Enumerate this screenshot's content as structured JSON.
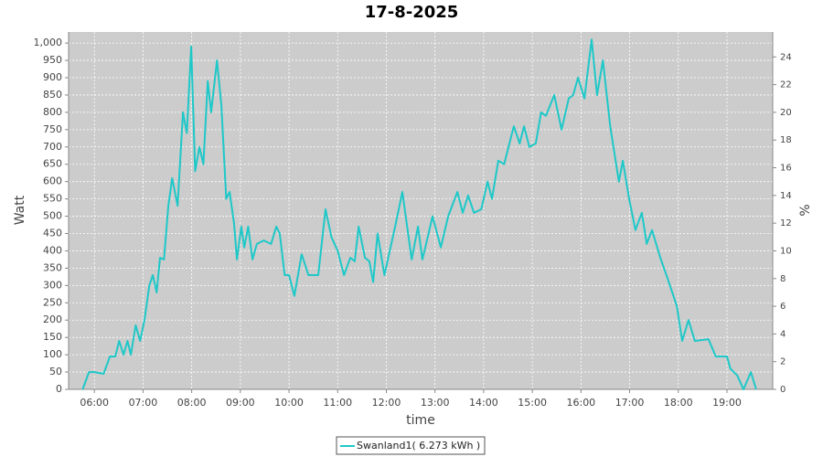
{
  "chart_data": {
    "type": "line",
    "title": "17-8-2025",
    "xlabel": "time",
    "ylabel": "Watt",
    "y2label": "%",
    "x": [
      5.76,
      5.89,
      6.0,
      6.19,
      6.32,
      6.43,
      6.51,
      6.6,
      6.68,
      6.75,
      6.85,
      6.94,
      7.03,
      7.13,
      7.2,
      7.28,
      7.35,
      7.43,
      7.52,
      7.6,
      7.71,
      7.82,
      7.9,
      7.99,
      8.07,
      8.16,
      8.24,
      8.33,
      8.4,
      8.52,
      8.61,
      8.71,
      8.78,
      8.87,
      8.93,
      9.02,
      9.08,
      9.16,
      9.25,
      9.34,
      9.48,
      9.63,
      9.74,
      9.81,
      9.91,
      10.0,
      10.11,
      10.26,
      10.4,
      10.6,
      10.75,
      10.87,
      11.0,
      11.13,
      11.26,
      11.35,
      11.43,
      11.56,
      11.65,
      11.73,
      11.82,
      11.96,
      12.18,
      12.33,
      12.52,
      12.65,
      12.74,
      12.8,
      12.95,
      13.12,
      13.27,
      13.46,
      13.57,
      13.68,
      13.8,
      13.95,
      14.08,
      14.17,
      14.3,
      14.42,
      14.51,
      14.62,
      14.74,
      14.83,
      14.94,
      15.07,
      15.18,
      15.28,
      15.45,
      15.6,
      15.75,
      15.84,
      15.94,
      16.07,
      16.22,
      16.33,
      16.45,
      16.6,
      16.78,
      16.86,
      16.99,
      17.12,
      17.25,
      17.35,
      17.46,
      17.63,
      17.78,
      17.97,
      18.08,
      18.21,
      18.34,
      18.62,
      18.77,
      19.0,
      19.07,
      19.21,
      19.34,
      19.49,
      19.6
    ],
    "series": [
      {
        "name": "Swanland1( 6.273 kWh )",
        "color": "#1ec8c8",
        "values": [
          0,
          50,
          50,
          45,
          95,
          95,
          140,
          100,
          140,
          100,
          185,
          140,
          200,
          300,
          330,
          280,
          380,
          375,
          530,
          610,
          530,
          800,
          740,
          990,
          630,
          700,
          650,
          890,
          800,
          950,
          820,
          550,
          570,
          480,
          375,
          470,
          410,
          470,
          375,
          420,
          430,
          420,
          470,
          450,
          330,
          330,
          270,
          390,
          330,
          330,
          520,
          440,
          400,
          330,
          380,
          370,
          470,
          380,
          370,
          310,
          450,
          330,
          470,
          570,
          375,
          470,
          375,
          410,
          500,
          410,
          500,
          570,
          510,
          560,
          510,
          520,
          600,
          550,
          660,
          650,
          700,
          760,
          710,
          760,
          700,
          710,
          800,
          790,
          850,
          750,
          840,
          850,
          900,
          840,
          1010,
          850,
          950,
          760,
          600,
          660,
          550,
          460,
          510,
          420,
          460,
          380,
          320,
          240,
          140,
          200,
          140,
          145,
          95,
          95,
          60,
          40,
          0,
          50,
          0
        ]
      }
    ],
    "xlim": [
      5.47,
      19.94
    ],
    "xticks": [
      {
        "value": 6,
        "label": "06:00"
      },
      {
        "value": 7,
        "label": "07:00"
      },
      {
        "value": 8,
        "label": "08:00"
      },
      {
        "value": 9,
        "label": "09:00"
      },
      {
        "value": 10,
        "label": "10:00"
      },
      {
        "value": 11,
        "label": "11:00"
      },
      {
        "value": 12,
        "label": "12:00"
      },
      {
        "value": 13,
        "label": "13:00"
      },
      {
        "value": 14,
        "label": "14:00"
      },
      {
        "value": 15,
        "label": "15:00"
      },
      {
        "value": 16,
        "label": "16:00"
      },
      {
        "value": 17,
        "label": "17:00"
      },
      {
        "value": 18,
        "label": "18:00"
      },
      {
        "value": 19,
        "label": "19:00"
      }
    ],
    "ylim": [
      0,
      1032
    ],
    "yticks": [
      0,
      50,
      100,
      150,
      200,
      250,
      300,
      350,
      400,
      450,
      500,
      550,
      600,
      650,
      700,
      750,
      800,
      850,
      900,
      950,
      {
        "value": 1000,
        "label": "1,000"
      }
    ],
    "y2lim": [
      0,
      25.8
    ],
    "y2ticks": [
      0,
      2,
      4,
      6,
      8,
      10,
      12,
      14,
      16,
      18,
      20,
      22,
      24
    ],
    "grid": true
  }
}
